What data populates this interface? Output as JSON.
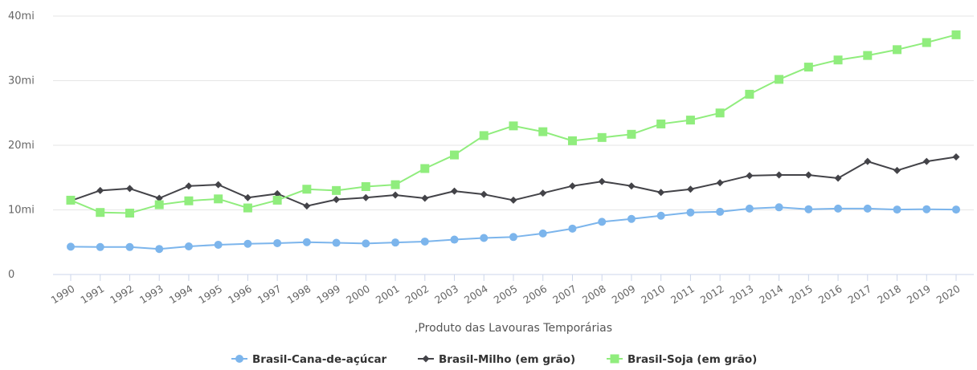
{
  "chart_data": {
    "type": "line",
    "xlabel": ",Produto das Lavouras Temporárias",
    "ylabel": "",
    "ylim": [
      0,
      40000000
    ],
    "yticks": [
      {
        "value": 0,
        "label": "0"
      },
      {
        "value": 10000000,
        "label": "10mi"
      },
      {
        "value": 20000000,
        "label": "20mi"
      },
      {
        "value": 30000000,
        "label": "30mi"
      },
      {
        "value": 40000000,
        "label": "40mi"
      }
    ],
    "categories": [
      "1990",
      "1991",
      "1992",
      "1993",
      "1994",
      "1995",
      "1996",
      "1997",
      "1998",
      "1999",
      "2000",
      "2001",
      "2002",
      "2003",
      "2004",
      "2005",
      "2006",
      "2007",
      "2008",
      "2009",
      "2010",
      "2011",
      "2012",
      "2013",
      "2014",
      "2015",
      "2016",
      "2017",
      "2018",
      "2019",
      "2020"
    ],
    "legend_position": "bottom",
    "grid": true,
    "series": [
      {
        "name": "Brasil-Cana-de-açúcar",
        "color": "#7cb5ec",
        "marker": "circle",
        "values": [
          4300000,
          4250000,
          4250000,
          3950000,
          4350000,
          4600000,
          4750000,
          4850000,
          5000000,
          4900000,
          4800000,
          4950000,
          5100000,
          5400000,
          5650000,
          5800000,
          6350000,
          7100000,
          8150000,
          8600000,
          9100000,
          9600000,
          9700000,
          10200000,
          10400000,
          10100000,
          10200000,
          10200000,
          10050000,
          10100000,
          10050000
        ]
      },
      {
        "name": "Brasil-Milho (em grão)",
        "color": "#434348",
        "marker": "diamond",
        "values": [
          11400000,
          13000000,
          13300000,
          11800000,
          13700000,
          13900000,
          11900000,
          12500000,
          10600000,
          11600000,
          11900000,
          12300000,
          11800000,
          12900000,
          12400000,
          11500000,
          12600000,
          13700000,
          14400000,
          13700000,
          12700000,
          13200000,
          14200000,
          15300000,
          15400000,
          15400000,
          14900000,
          17500000,
          16100000,
          17500000,
          18200000
        ]
      },
      {
        "name": "Brasil-Soja (em grão)",
        "color": "#90ed7d",
        "marker": "square",
        "values": [
          11500000,
          9600000,
          9500000,
          10800000,
          11400000,
          11700000,
          10300000,
          11500000,
          13200000,
          13000000,
          13600000,
          13900000,
          16400000,
          18500000,
          21500000,
          23000000,
          22100000,
          20700000,
          21200000,
          21700000,
          23300000,
          23900000,
          25000000,
          27900000,
          30200000,
          32100000,
          33200000,
          33900000,
          34800000,
          35900000,
          37100000
        ]
      }
    ]
  }
}
